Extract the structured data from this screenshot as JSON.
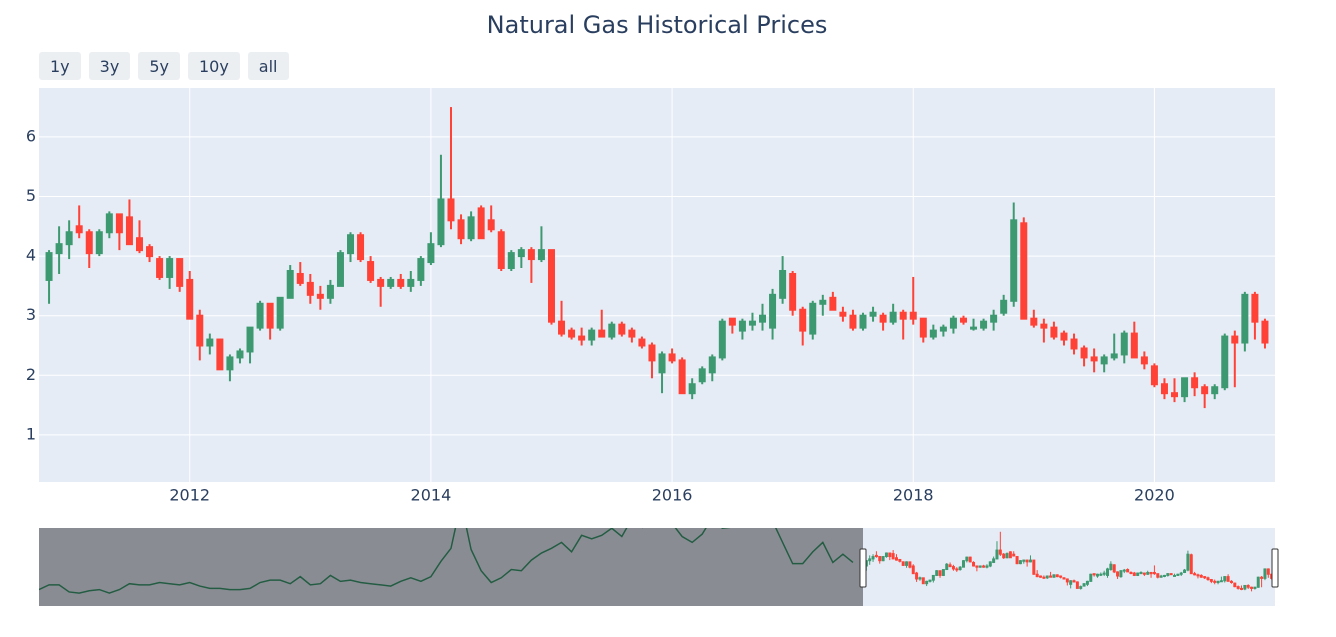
{
  "chart_data": {
    "type": "candlestick",
    "title": "Natural Gas Historical Prices",
    "range_buttons": [
      "1y",
      "3y",
      "5y",
      "10y",
      "all"
    ],
    "increasing_color": "#3d9970",
    "decreasing_color": "#ff4136",
    "grid": true,
    "xlim": [
      "2010-10",
      "2021-01"
    ],
    "ylim": [
      0.21,
      6.82
    ],
    "yticks": [
      1,
      2,
      3,
      4,
      5,
      6
    ],
    "xticks": [
      {
        "value": "2012-01",
        "label": "2012"
      },
      {
        "value": "2014-01",
        "label": "2014"
      },
      {
        "value": "2016-01",
        "label": "2016"
      },
      {
        "value": "2018-01",
        "label": "2018"
      },
      {
        "value": "2020-01",
        "label": "2020"
      }
    ],
    "x": [
      "2010-11",
      "2010-12",
      "2011-01",
      "2011-02",
      "2011-03",
      "2011-04",
      "2011-05",
      "2011-06",
      "2011-07",
      "2011-08",
      "2011-09",
      "2011-10",
      "2011-11",
      "2011-12",
      "2012-01",
      "2012-02",
      "2012-03",
      "2012-04",
      "2012-05",
      "2012-06",
      "2012-07",
      "2012-08",
      "2012-09",
      "2012-10",
      "2012-11",
      "2012-12",
      "2013-01",
      "2013-02",
      "2013-03",
      "2013-04",
      "2013-05",
      "2013-06",
      "2013-07",
      "2013-08",
      "2013-09",
      "2013-10",
      "2013-11",
      "2013-12",
      "2014-01",
      "2014-02",
      "2014-03",
      "2014-04",
      "2014-05",
      "2014-06",
      "2014-07",
      "2014-08",
      "2014-09",
      "2014-10",
      "2014-11",
      "2014-12",
      "2015-01",
      "2015-02",
      "2015-03",
      "2015-04",
      "2015-05",
      "2015-06",
      "2015-07",
      "2015-08",
      "2015-09",
      "2015-10",
      "2015-11",
      "2015-12",
      "2016-01",
      "2016-02",
      "2016-03",
      "2016-04",
      "2016-05",
      "2016-06",
      "2016-07",
      "2016-08",
      "2016-09",
      "2016-10",
      "2016-11",
      "2016-12",
      "2017-01",
      "2017-02",
      "2017-03",
      "2017-04",
      "2017-05",
      "2017-06",
      "2017-07",
      "2017-08",
      "2017-09",
      "2017-10",
      "2017-11",
      "2017-12",
      "2018-01",
      "2018-02",
      "2018-03",
      "2018-04",
      "2018-05",
      "2018-06",
      "2018-07",
      "2018-08",
      "2018-09",
      "2018-10",
      "2018-11",
      "2018-12",
      "2019-01",
      "2019-02",
      "2019-03",
      "2019-04",
      "2019-05",
      "2019-06",
      "2019-07",
      "2019-08",
      "2019-09",
      "2019-10",
      "2019-11",
      "2019-12",
      "2020-01",
      "2020-02",
      "2020-03",
      "2020-04",
      "2020-05",
      "2020-06",
      "2020-07",
      "2020-08",
      "2020-09",
      "2020-10",
      "2020-11",
      "2020-12"
    ],
    "open": [
      3.6,
      4.05,
      4.2,
      4.5,
      4.4,
      4.05,
      4.4,
      4.7,
      4.65,
      4.3,
      4.15,
      3.95,
      3.65,
      3.95,
      3.6,
      3.0,
      2.5,
      2.6,
      2.1,
      2.3,
      2.4,
      2.8,
      3.2,
      2.8,
      3.3,
      3.7,
      3.55,
      3.35,
      3.3,
      3.5,
      4.05,
      4.35,
      3.9,
      3.6,
      3.5,
      3.6,
      3.5,
      3.6,
      3.9,
      4.2,
      4.95,
      4.6,
      4.3,
      4.8,
      4.6,
      4.4,
      3.8,
      4.0,
      4.1,
      3.95,
      4.1,
      2.9,
      2.75,
      2.65,
      2.6,
      2.75,
      2.65,
      2.85,
      2.75,
      2.6,
      2.5,
      2.05,
      2.35,
      2.25,
      1.7,
      1.9,
      2.05,
      2.3,
      2.95,
      2.75,
      2.85,
      2.9,
      2.8,
      3.3,
      3.7,
      3.1,
      2.7,
      3.2,
      3.3,
      3.05,
      3.0,
      2.8,
      3.0,
      3.0,
      2.9,
      3.05,
      3.05,
      2.95,
      2.65,
      2.75,
      2.8,
      2.95,
      2.8,
      2.8,
      2.9,
      3.05,
      3.25,
      4.55,
      2.95,
      2.85,
      2.8,
      2.7,
      2.6,
      2.45,
      2.3,
      2.2,
      2.3,
      2.35,
      2.7,
      2.3,
      2.15,
      1.85,
      1.7,
      1.65,
      1.95,
      1.8,
      1.7,
      1.8,
      2.65,
      2.55,
      3.35,
      2.9
    ],
    "high": [
      4.1,
      4.5,
      4.6,
      4.85,
      4.45,
      4.45,
      4.75,
      4.7,
      4.95,
      4.6,
      4.2,
      4.0,
      4.0,
      3.95,
      3.75,
      3.1,
      2.7,
      2.6,
      2.35,
      2.45,
      2.8,
      3.25,
      3.2,
      3.3,
      3.85,
      3.9,
      3.7,
      3.5,
      3.6,
      4.1,
      4.4,
      4.4,
      4.0,
      3.65,
      3.65,
      3.7,
      3.75,
      4.0,
      4.4,
      5.7,
      6.5,
      4.7,
      4.75,
      4.85,
      4.85,
      4.45,
      4.1,
      4.15,
      4.15,
      4.5,
      4.1,
      3.25,
      2.8,
      2.8,
      2.8,
      3.1,
      2.9,
      2.9,
      2.8,
      2.65,
      2.55,
      2.4,
      2.45,
      2.3,
      1.95,
      2.15,
      2.35,
      2.95,
      2.95,
      2.95,
      3.05,
      3.2,
      3.45,
      4.0,
      3.75,
      3.15,
      3.25,
      3.35,
      3.4,
      3.15,
      3.1,
      3.05,
      3.15,
      3.05,
      3.2,
      3.1,
      3.65,
      2.95,
      2.85,
      2.85,
      3.0,
      3.0,
      2.95,
      2.95,
      3.1,
      3.35,
      4.9,
      4.65,
      3.1,
      2.95,
      2.9,
      2.75,
      2.7,
      2.5,
      2.45,
      2.35,
      2.7,
      2.75,
      2.9,
      2.4,
      2.2,
      1.95,
      1.95,
      1.95,
      2.05,
      1.85,
      1.85,
      2.7,
      2.75,
      3.4,
      3.4,
      2.95
    ],
    "low": [
      3.2,
      3.7,
      3.95,
      4.3,
      3.8,
      4.0,
      4.3,
      4.1,
      4.2,
      4.05,
      3.9,
      3.6,
      3.45,
      3.4,
      2.95,
      2.25,
      2.35,
      2.1,
      1.9,
      2.2,
      2.2,
      2.75,
      2.6,
      2.75,
      3.3,
      3.5,
      3.2,
      3.1,
      3.2,
      3.5,
      3.9,
      3.9,
      3.55,
      3.15,
      3.45,
      3.45,
      3.4,
      3.5,
      3.85,
      4.15,
      4.45,
      4.2,
      4.25,
      4.3,
      4.4,
      3.75,
      3.75,
      3.8,
      3.55,
      3.9,
      2.85,
      2.65,
      2.6,
      2.5,
      2.5,
      2.65,
      2.6,
      2.65,
      2.55,
      2.45,
      1.95,
      1.7,
      2.2,
      1.7,
      1.6,
      1.85,
      1.9,
      2.25,
      2.7,
      2.6,
      2.75,
      2.75,
      2.6,
      3.2,
      3.0,
      2.5,
      2.6,
      3.0,
      3.1,
      2.9,
      2.75,
      2.75,
      2.9,
      2.75,
      2.85,
      2.6,
      2.85,
      2.55,
      2.6,
      2.65,
      2.7,
      2.85,
      2.75,
      2.75,
      2.75,
      3.0,
      3.15,
      2.95,
      2.8,
      2.55,
      2.6,
      2.5,
      2.35,
      2.15,
      2.05,
      2.05,
      2.25,
      2.2,
      2.3,
      2.1,
      1.8,
      1.6,
      1.55,
      1.55,
      1.65,
      1.45,
      1.6,
      1.75,
      1.8,
      2.4,
      2.6,
      2.45
    ],
    "close": [
      4.05,
      4.2,
      4.4,
      4.4,
      4.05,
      4.4,
      4.7,
      4.4,
      4.2,
      4.1,
      4.0,
      3.65,
      3.95,
      3.5,
      2.95,
      2.5,
      2.6,
      2.1,
      2.3,
      2.4,
      2.8,
      3.2,
      2.8,
      3.3,
      3.75,
      3.55,
      3.35,
      3.3,
      3.5,
      4.05,
      4.35,
      3.95,
      3.6,
      3.5,
      3.6,
      3.5,
      3.6,
      3.95,
      4.2,
      4.95,
      4.6,
      4.3,
      4.65,
      4.3,
      4.45,
      3.8,
      4.05,
      4.1,
      3.95,
      4.1,
      2.9,
      2.7,
      2.65,
      2.6,
      2.75,
      2.65,
      2.85,
      2.7,
      2.65,
      2.5,
      2.25,
      2.35,
      2.25,
      1.7,
      1.85,
      2.1,
      2.3,
      2.9,
      2.85,
      2.9,
      2.9,
      3.0,
      3.35,
      3.75,
      3.1,
      2.75,
      3.2,
      3.25,
      3.1,
      3.0,
      2.8,
      3.0,
      3.05,
      2.9,
      3.05,
      2.95,
      2.95,
      2.65,
      2.75,
      2.8,
      2.95,
      2.9,
      2.8,
      2.9,
      3.0,
      3.25,
      4.6,
      2.95,
      2.85,
      2.8,
      2.65,
      2.6,
      2.45,
      2.3,
      2.25,
      2.3,
      2.35,
      2.7,
      2.3,
      2.2,
      1.85,
      1.7,
      1.65,
      1.95,
      1.8,
      1.7,
      1.8,
      2.65,
      2.55,
      3.35,
      2.9,
      2.55
    ],
    "rangeslider": {
      "xlim": [
        "1990-04",
        "2021-01"
      ],
      "history": {
        "x": [
          "1990-04",
          "1990-07",
          "1990-10",
          "1991-01",
          "1991-04",
          "1991-07",
          "1991-10",
          "1992-01",
          "1992-04",
          "1992-07",
          "1992-10",
          "1993-01",
          "1993-04",
          "1993-07",
          "1993-10",
          "1994-01",
          "1994-04",
          "1994-07",
          "1994-10",
          "1995-01",
          "1995-04",
          "1995-07",
          "1995-10",
          "1996-01",
          "1996-04",
          "1996-07",
          "1996-10",
          "1997-01",
          "1997-04",
          "1997-07",
          "1997-10",
          "1998-01",
          "1998-04",
          "1998-07",
          "1998-10",
          "1999-01",
          "1999-04",
          "1999-07",
          "1999-10",
          "2000-01",
          "2000-04",
          "2000-07",
          "2000-10",
          "2001-01",
          "2001-04",
          "2001-07",
          "2001-10",
          "2002-01",
          "2002-04",
          "2002-07",
          "2002-10",
          "2003-01",
          "2003-04",
          "2003-07",
          "2003-10",
          "2004-01",
          "2004-04",
          "2004-07",
          "2004-10",
          "2005-01",
          "2005-04",
          "2005-07",
          "2005-10",
          "2006-01",
          "2006-04",
          "2006-07",
          "2006-10",
          "2007-01",
          "2007-04",
          "2007-07",
          "2007-10",
          "2008-01",
          "2008-04",
          "2008-07",
          "2008-10",
          "2009-01",
          "2009-04",
          "2009-07",
          "2009-10",
          "2010-01",
          "2010-04",
          "2010-07"
        ],
        "close": [
          1.6,
          2.0,
          2.0,
          1.4,
          1.3,
          1.5,
          1.6,
          1.3,
          1.6,
          2.1,
          2.0,
          2.0,
          2.2,
          2.1,
          2.0,
          2.2,
          1.9,
          1.7,
          1.7,
          1.6,
          1.6,
          1.7,
          2.2,
          2.4,
          2.4,
          2.1,
          2.7,
          2.0,
          2.1,
          2.8,
          2.3,
          2.4,
          2.2,
          2.1,
          2.0,
          1.9,
          2.3,
          2.6,
          2.3,
          2.7,
          4.0,
          5.1,
          9.0,
          5.0,
          3.2,
          2.2,
          2.6,
          3.3,
          3.2,
          4.1,
          4.7,
          5.1,
          5.6,
          4.8,
          6.2,
          5.9,
          6.2,
          6.8,
          6.1,
          7.6,
          6.9,
          13.0,
          11.0,
          7.2,
          6.1,
          5.6,
          6.3,
          7.7,
          6.8,
          6.9,
          7.5,
          10.1,
          13.3,
          7.4,
          5.6,
          3.8,
          3.8,
          4.8,
          5.6,
          3.9,
          4.6,
          3.9
        ]
      }
    }
  }
}
